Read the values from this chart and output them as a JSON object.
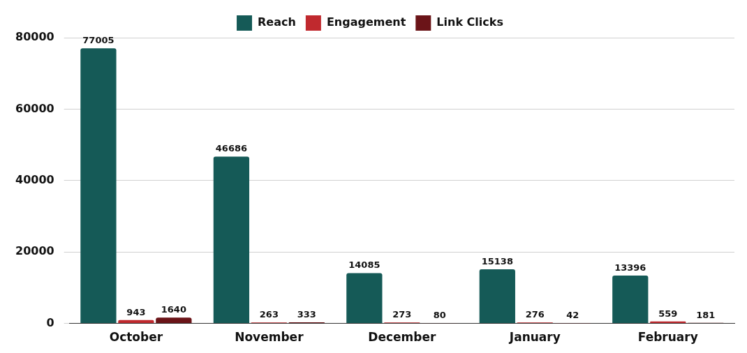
{
  "chart_data": {
    "type": "bar",
    "categories": [
      "October",
      "November",
      "December",
      "January",
      "February"
    ],
    "series": [
      {
        "name": "Reach",
        "color": "#155a57",
        "values": [
          77005,
          46686,
          14085,
          15138,
          13396
        ]
      },
      {
        "name": "Engagement",
        "color": "#c0292e",
        "values": [
          943,
          263,
          273,
          276,
          559
        ]
      },
      {
        "name": "Link Clicks",
        "color": "#6b1418",
        "values": [
          1640,
          333,
          80,
          42,
          181
        ]
      }
    ],
    "ylim": [
      0,
      80000
    ],
    "yticks": [
      0,
      20000,
      40000,
      60000,
      80000
    ],
    "grid": "y",
    "legend": "top",
    "data_labels": true
  }
}
